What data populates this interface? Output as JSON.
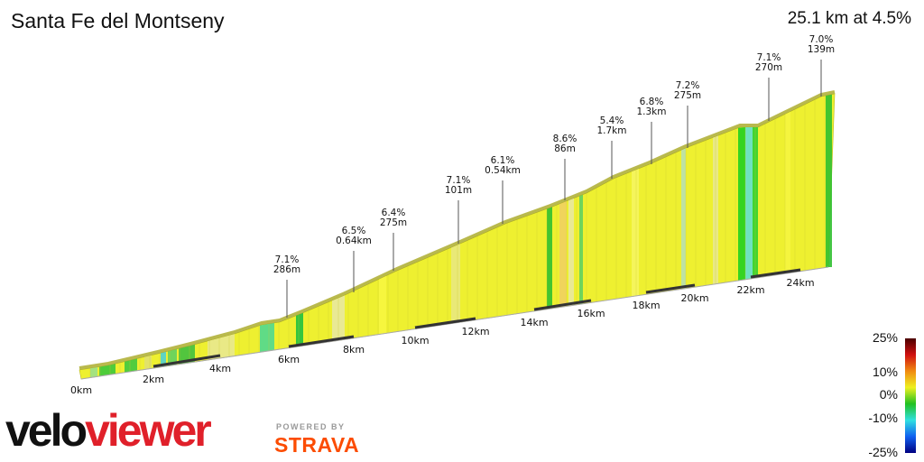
{
  "header": {
    "title": "Santa Fe del Montseny",
    "summary": "25.1 km at 4.5%"
  },
  "chart_data": {
    "type": "area",
    "subtype": "3d-elevation-profile",
    "title": "Santa Fe del Montseny",
    "distance_km": 25.1,
    "avg_grade_pct": 4.5,
    "x_ticks": [
      "0km",
      "2km",
      "4km",
      "6km",
      "8km",
      "10km",
      "12km",
      "14km",
      "16km",
      "18km",
      "20km",
      "22km",
      "24km"
    ],
    "annotations": [
      {
        "grade": "7.1%",
        "length": "286m"
      },
      {
        "grade": "6.5%",
        "length": "0.64km"
      },
      {
        "grade": "6.4%",
        "length": "275m"
      },
      {
        "grade": "7.1%",
        "length": "101m"
      },
      {
        "grade": "6.1%",
        "length": "0.54km"
      },
      {
        "grade": "8.6%",
        "length": "86m"
      },
      {
        "grade": "5.4%",
        "length": "1.7km"
      },
      {
        "grade": "6.8%",
        "length": "1.3km"
      },
      {
        "grade": "7.2%",
        "length": "275m"
      },
      {
        "grade": "7.1%",
        "length": "270m"
      },
      {
        "grade": "7.0%",
        "length": "139m"
      }
    ],
    "legend": {
      "labels": [
        "25%",
        "10%",
        "0%",
        "-10%",
        "-25%"
      ],
      "placement": "bottom-right",
      "colors": [
        "#4a0000",
        "#d01010",
        "#f08a10",
        "#eef020",
        "#20c020",
        "#30e0e0",
        "#1060f0",
        "#000080"
      ]
    }
  },
  "branding": {
    "logo_velo": "velo",
    "logo_viewer": "viewer",
    "powered_by": "POWERED BY",
    "strava": "STRAVA"
  }
}
